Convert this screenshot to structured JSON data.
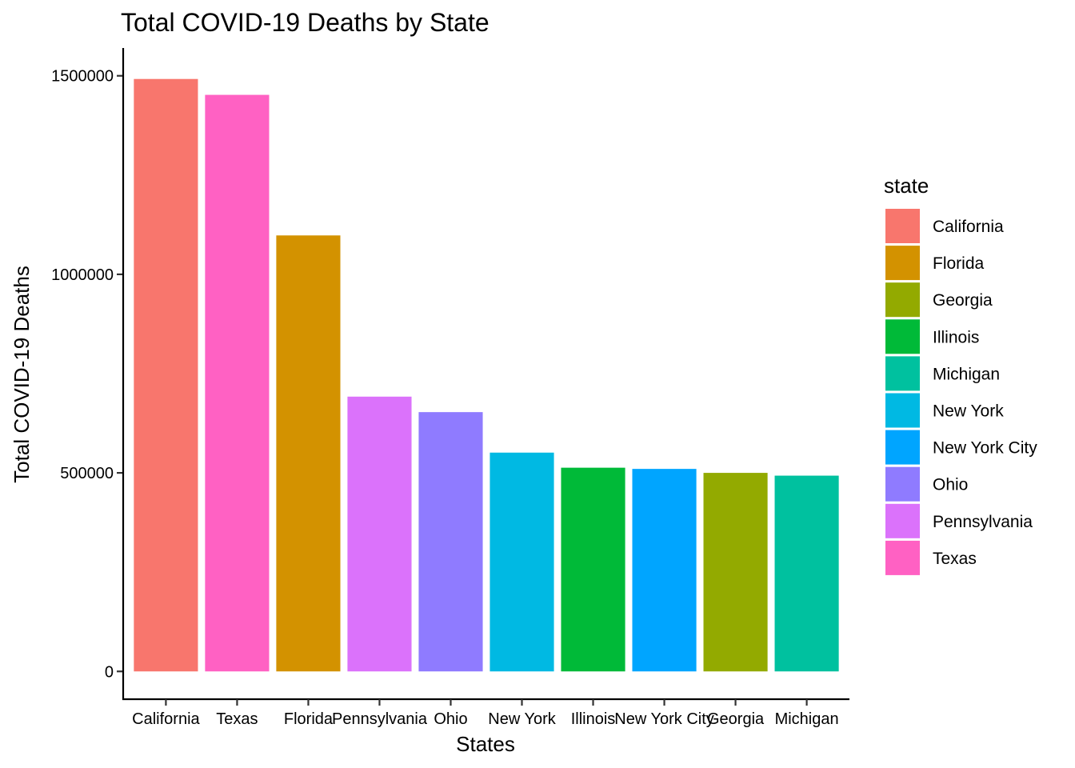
{
  "chart_data": {
    "type": "bar",
    "title": "Total COVID-19 Deaths by State",
    "xlabel": "States",
    "ylabel": "Total COVID-19 Deaths",
    "categories": [
      "California",
      "Texas",
      "Florida",
      "Pennsylvania",
      "Ohio",
      "New York",
      "Illinois",
      "New York City",
      "Georgia",
      "Michigan"
    ],
    "values": [
      1492000,
      1452000,
      1098000,
      692000,
      653000,
      551000,
      513000,
      510000,
      500000,
      493000
    ],
    "yticks": [
      0,
      500000,
      1000000,
      1500000
    ],
    "ytick_labels": [
      "0",
      "500000",
      "1000000",
      "1500000"
    ],
    "ylim": [
      -70000,
      1570000
    ],
    "grid": false,
    "legend": {
      "title": "state",
      "position": "right",
      "entries": [
        "California",
        "Florida",
        "Georgia",
        "Illinois",
        "Michigan",
        "New York",
        "New York City",
        "Ohio",
        "Pennsylvania",
        "Texas"
      ]
    },
    "colors": {
      "California": "#F8766D",
      "Florida": "#D39200",
      "Georgia": "#93AA00",
      "Illinois": "#00BA38",
      "Michigan": "#00C19F",
      "New York": "#00B9E3",
      "New York City": "#00A5FF",
      "Ohio": "#8F7BFF",
      "Pennsylvania": "#DB72FB",
      "Texas": "#FF61C3"
    }
  }
}
